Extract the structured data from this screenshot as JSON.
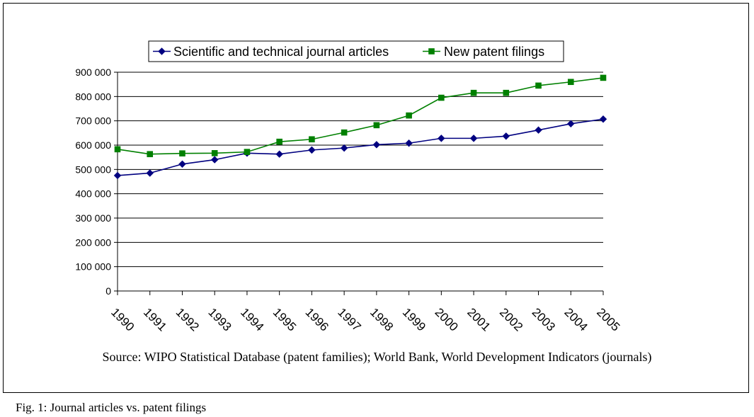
{
  "chart_data": {
    "type": "line",
    "title": "",
    "xlabel": "",
    "ylabel": "",
    "categories": [
      "1990",
      "1991",
      "1992",
      "1993",
      "1994",
      "1995",
      "1996",
      "1997",
      "1998",
      "1999",
      "2000",
      "2001",
      "2002",
      "2003",
      "2004",
      "2005"
    ],
    "ylim": [
      0,
      900000
    ],
    "yticks": [
      0,
      100000,
      200000,
      300000,
      400000,
      500000,
      600000,
      700000,
      800000,
      900000
    ],
    "ytick_labels": [
      "0",
      "100 000",
      "200 000",
      "300 000",
      "400 000",
      "500 000",
      "600 000",
      "700 000",
      "800 000",
      "900 000"
    ],
    "grid": "horizontal",
    "legend_position": "top",
    "series": [
      {
        "name": "Scientific and technical journal articles",
        "color": "#000080",
        "marker": "diamond",
        "values": [
          475000,
          485000,
          522000,
          540000,
          567000,
          563000,
          580000,
          588000,
          602000,
          608000,
          628000,
          628000,
          637000,
          662000,
          688000,
          707000
        ]
      },
      {
        "name": "New patent filings",
        "color": "#008000",
        "marker": "square",
        "values": [
          583000,
          563000,
          566000,
          567000,
          572000,
          614000,
          624000,
          652000,
          682000,
          722000,
          795000,
          815000,
          815000,
          845000,
          860000,
          877000
        ]
      }
    ]
  },
  "source_note": "Source: WIPO Statistical Database (patent families); World Bank, World Development Indicators (journals)",
  "caption": "Fig. 1: Journal articles vs. patent filings"
}
